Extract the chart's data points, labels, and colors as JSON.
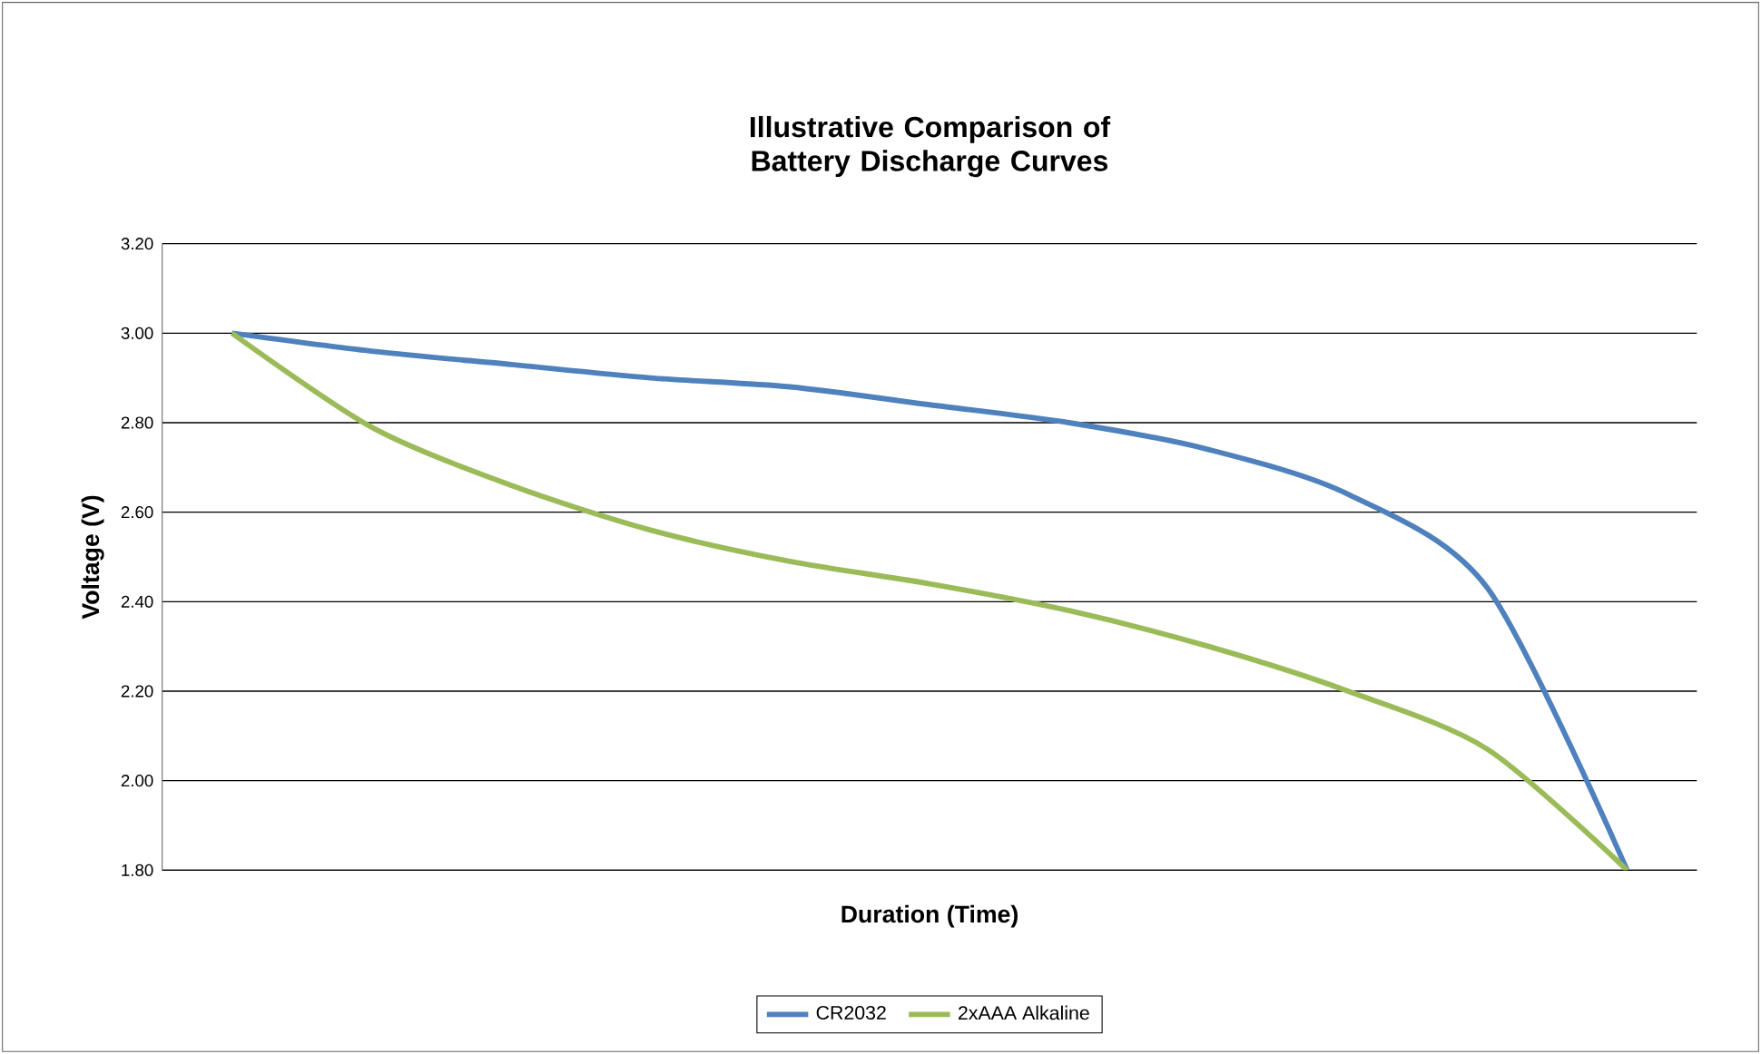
{
  "chart_data": {
    "type": "line",
    "title": "Illustrative Comparison of Battery Discharge Curves",
    "xlabel": "Duration (Time)",
    "ylabel": "Voltage (V)",
    "categories": [
      null,
      null,
      null,
      null,
      null,
      null,
      null,
      null,
      null,
      null,
      null
    ],
    "series": [
      {
        "name": "CR2032",
        "color": "#4f81bd",
        "values": [
          3.0,
          2.96,
          2.93,
          2.9,
          2.88,
          2.84,
          2.8,
          2.74,
          2.64,
          2.43,
          1.8
        ]
      },
      {
        "name": "2xAAA Alkaline",
        "color": "#9bbb59",
        "values": [
          3.0,
          2.79,
          2.66,
          2.56,
          2.49,
          2.44,
          2.38,
          2.3,
          2.2,
          2.07,
          1.8
        ]
      }
    ],
    "ylim": [
      1.8,
      3.2
    ],
    "yticks": [
      {
        "value": 1.8,
        "label": "1.80"
      },
      {
        "value": 2.0,
        "label": "2.00"
      },
      {
        "value": 2.2,
        "label": "2.20"
      },
      {
        "value": 2.4,
        "label": "2.40"
      },
      {
        "value": 2.6,
        "label": "2.60"
      },
      {
        "value": 2.8,
        "label": "2.80"
      },
      {
        "value": 3.0,
        "label": "3.00"
      },
      {
        "value": 3.2,
        "label": "3.20"
      }
    ],
    "grid": "y",
    "legend": "bottom",
    "tick_labels": "y",
    "marker": "none",
    "line_style": "solid"
  }
}
